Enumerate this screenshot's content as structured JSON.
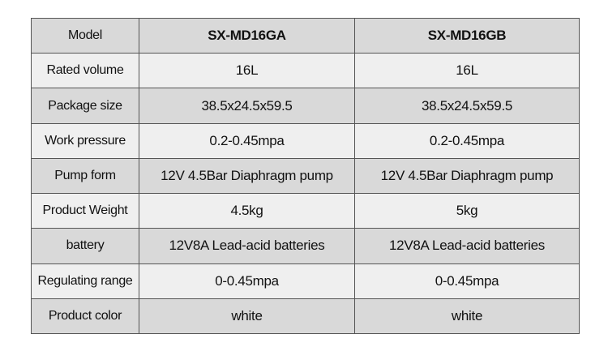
{
  "table": {
    "header": [
      "Model",
      "SX-MD16GA",
      "SX-MD16GB"
    ],
    "rows": [
      [
        "Rated volume",
        "16L",
        "16L"
      ],
      [
        "Package size",
        "38.5x24.5x59.5",
        "38.5x24.5x59.5"
      ],
      [
        "Work pressure",
        "0.2-0.45mpa",
        "0.2-0.45mpa"
      ],
      [
        "Pump form",
        "12V 4.5Bar Diaphragm pump",
        "12V 4.5Bar Diaphragm pump"
      ],
      [
        "Product Weight",
        "4.5kg",
        "5kg"
      ],
      [
        "battery",
        "12V8A Lead-acid batteries",
        "12V8A Lead-acid batteries"
      ],
      [
        "Regulating range",
        "0-0.45mpa",
        "0-0.45mpa"
      ],
      [
        "Product color",
        "white",
        "white"
      ]
    ]
  }
}
